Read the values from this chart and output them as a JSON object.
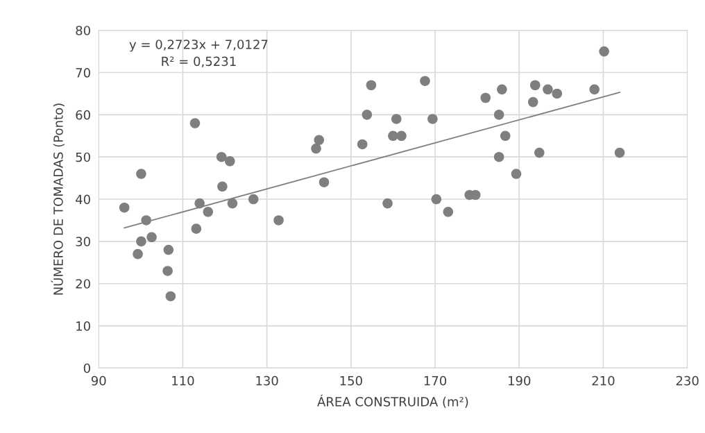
{
  "chart_data": {
    "type": "scatter",
    "xlabel": "ÁREA CONSTRUIDA (m²)",
    "ylabel": "NÚMERO DE TOMADAS (Ponto)",
    "xlim": [
      90,
      230
    ],
    "xticks": [
      90,
      110,
      130,
      150,
      170,
      190,
      210,
      230
    ],
    "ylim": [
      0,
      80
    ],
    "yticks": [
      0,
      10,
      20,
      30,
      40,
      50,
      60,
      70,
      80
    ],
    "grid": true,
    "annotations": [
      "y = 0,2723x + 7,0127\nR² = 0,5231"
    ],
    "series": [
      {
        "marker": "circle",
        "color": "#7f7f7f",
        "x": [
          96.1,
          100.1,
          101.3,
          100.1,
          99.3,
          102.6,
          106.6,
          106.4,
          107.1,
          112.9,
          113.2,
          114.0,
          116.0,
          119.2,
          119.4,
          121.2,
          121.8,
          126.8,
          132.8,
          141.7,
          142.4,
          143.6,
          152.7,
          153.8,
          154.8,
          158.7,
          160.0,
          160.8,
          162.0,
          167.6,
          169.4,
          170.3,
          173.1,
          178.2,
          179.6,
          182.0,
          185.2,
          185.9,
          185.2,
          186.7,
          189.3,
          193.3,
          193.8,
          194.8,
          196.8,
          199.0,
          207.9,
          210.2,
          213.9
        ],
        "values": [
          38,
          46,
          35,
          30,
          27,
          31,
          28,
          23,
          17,
          58,
          33,
          39,
          37,
          50,
          43,
          49,
          39,
          40,
          35,
          52,
          54,
          44,
          53,
          60,
          67,
          39,
          55,
          59,
          55,
          68,
          59,
          40,
          37,
          41,
          41,
          64,
          60,
          66,
          50,
          55,
          46,
          63,
          67,
          51,
          66,
          65,
          66,
          75,
          51
        ]
      },
      {
        "type": "line",
        "color": "#7f7f7f",
        "x": [
          96.1,
          213.9
        ],
        "values": [
          33.2,
          65.3
        ]
      }
    ]
  }
}
